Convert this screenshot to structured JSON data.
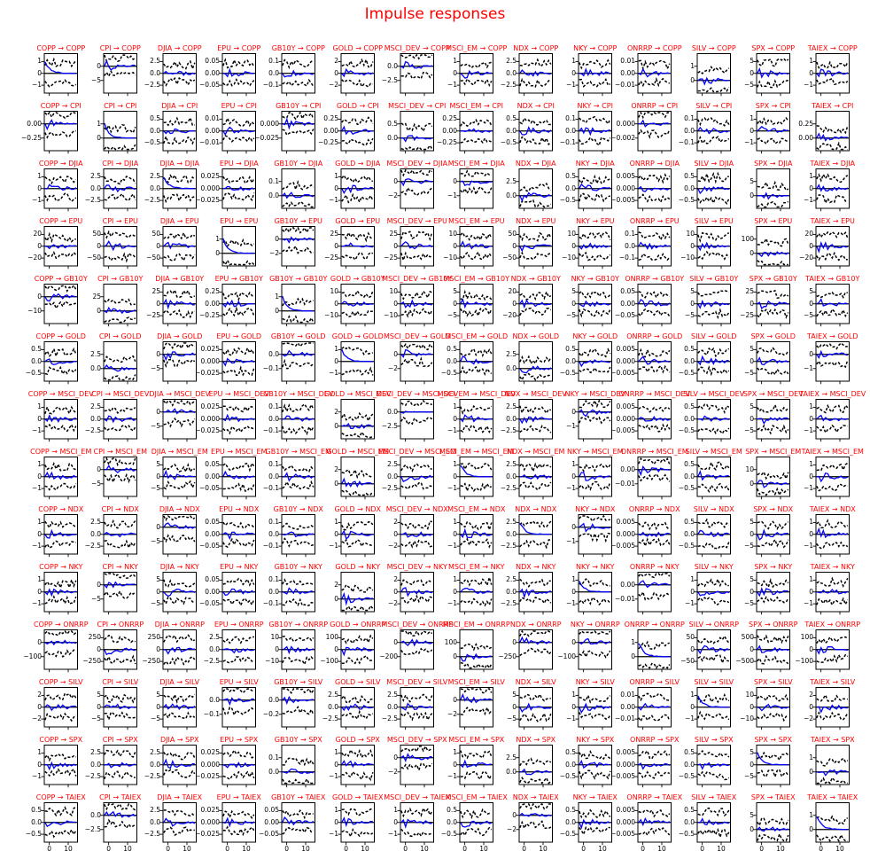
{
  "figure": {
    "title": "Impulse responses",
    "title_color": "#ff0000",
    "subplot_title_color": "#ff0000",
    "background": "#ffffff"
  },
  "chart_data": {
    "type": "line",
    "title": "Impulse responses",
    "grid": "14x14 impulse-response matrix (column variable = impulse, row variable = response)",
    "subplot_title_format": "{impulse} → {response}",
    "impulse_variables": [
      "COPP",
      "CPI",
      "DJIA",
      "EPU",
      "GB10Y",
      "GOLD",
      "MSCI_DEV",
      "MSCI_EM",
      "NDX",
      "NKY",
      "ONRRP",
      "SILV",
      "SPX",
      "TAIEX"
    ],
    "response_variables": [
      "COPP",
      "CPI",
      "DJIA",
      "EPU",
      "GB10Y",
      "GOLD",
      "MSCI_DEV",
      "MSCI_EM",
      "NDX",
      "NKY",
      "ONRRP",
      "SILV",
      "SPX",
      "TAIEX"
    ],
    "x_ticks": [
      "0",
      "10"
    ],
    "x_range": [
      0,
      14
    ],
    "legend": "none",
    "series_style": {
      "irf_line": {
        "color": "#0000ff",
        "style": "solid",
        "description": "impulse response, oscillates around zero and decays"
      },
      "confidence_bands": {
        "color": "#000000",
        "style": "dashed",
        "description": "upper and lower confidence bands"
      },
      "zero_line": {
        "color": "#000000",
        "style": "solid"
      }
    },
    "y_ticks_grid": [
      [
        [
          "1",
          "0",
          "−1"
        ],
        [
          "0",
          "−5"
        ],
        [
          "2.5",
          "0.0",
          "−2.5"
        ],
        [
          "0.05",
          "0.00",
          "−0.05"
        ],
        [
          "0.1",
          "0.0",
          "−0.1"
        ],
        [
          "2",
          "0",
          "−2"
        ],
        [
          "0.0",
          "−2.5"
        ],
        [
          "1",
          "0",
          "−1"
        ],
        [
          "2.5",
          "0.0",
          "−2.5"
        ],
        [
          "1",
          "0",
          "−1"
        ],
        [
          "0.01",
          "0.00",
          "−0.01"
        ],
        [
          "1",
          "0"
        ],
        [
          "5",
          "0",
          "−5"
        ],
        [
          "1",
          "0",
          "−1"
        ]
      ],
      [
        [
          "0.00",
          "−0.25"
        ],
        [
          "1",
          "0"
        ],
        [
          "0.5",
          "0.0",
          "−0.5"
        ],
        [
          "0.01",
          "0.00",
          "−0.01"
        ],
        [
          "0.000",
          "−0.025"
        ],
        [
          "0.25",
          "0.00",
          "−0.25"
        ],
        [
          "0.5",
          "0.0"
        ],
        [
          "0.25",
          "0.00",
          "−0.25"
        ],
        [
          "0.5",
          "0.0",
          "−0.5"
        ],
        [
          "0.1",
          "0.0",
          "−0.1"
        ],
        [
          "0.000",
          "−0.002"
        ],
        [
          "0.1",
          "0.0",
          "−0.1"
        ],
        [
          "1",
          "0",
          "−1"
        ],
        [
          "0.25",
          "0.00"
        ]
      ],
      [
        [
          "1",
          "0",
          "−1"
        ],
        [
          "2.5",
          "0.0",
          "−2.5"
        ],
        [
          "2.5",
          "0.0",
          "−2.5"
        ],
        [
          "0.025",
          "0.000",
          "−0.025"
        ],
        [
          "0.1",
          "0.0"
        ],
        [
          "1",
          "0",
          "−1"
        ],
        [
          "0",
          "−2"
        ],
        [
          "0",
          "−1"
        ],
        [
          "2.5",
          "0.0"
        ],
        [
          "0.5",
          "0.0",
          "−0.5"
        ],
        [
          "0.005",
          "0.000",
          "−0.005"
        ],
        [
          "0.5",
          "0.0",
          "−0.5"
        ],
        [
          "5",
          "0"
        ],
        [
          "1",
          "0",
          "−1"
        ]
      ],
      [
        [
          "20",
          "0",
          "−20"
        ],
        [
          "50",
          "0",
          "−50"
        ],
        [
          "50",
          "0",
          "−50"
        ],
        [
          "1",
          "0"
        ],
        [
          "0",
          "−2"
        ],
        [
          "25",
          "0",
          "−25"
        ],
        [
          "25",
          "0",
          "−25"
        ],
        [
          "10",
          "0",
          "−10"
        ],
        [
          "50",
          "0",
          "−50"
        ],
        [
          "10",
          "0",
          "−10"
        ],
        [
          "0.1",
          "0.0",
          "−0.1"
        ],
        [
          "10",
          "0",
          "−10"
        ],
        [
          "100",
          "0"
        ],
        [
          "20",
          "0",
          "−20"
        ]
      ],
      [
        [
          "0",
          "−10"
        ],
        [
          "25",
          "0"
        ],
        [
          "25",
          "0",
          "−25"
        ],
        [
          "0.25",
          "0.00",
          "−0.25"
        ],
        [
          "1",
          "0"
        ],
        [
          "10",
          "0",
          "−10"
        ],
        [
          "10",
          "0",
          "−10"
        ],
        [
          "5",
          "0",
          "−5"
        ],
        [
          "20",
          "0",
          "−20"
        ],
        [
          "5",
          "0",
          "−5"
        ],
        [
          "0.05",
          "0.00",
          "−0.05"
        ],
        [
          "5",
          "0",
          "−5"
        ],
        [
          "25",
          "0",
          "−25"
        ],
        [
          "5",
          "0",
          "−5"
        ]
      ],
      [
        [
          "0.5",
          "0.0",
          "−0.5"
        ],
        [
          "2.5",
          "0.0"
        ],
        [
          "0",
          "−5"
        ],
        [
          "0.025",
          "0.000",
          "−0.025"
        ],
        [
          "0.0",
          "−0.1"
        ],
        [
          "1",
          "0",
          "−1"
        ],
        [
          "0",
          "−2"
        ],
        [
          "0.5",
          "0.0",
          "−0.5"
        ],
        [
          "2.5",
          "0.0"
        ],
        [
          "0.5",
          "0.0",
          "−0.5"
        ],
        [
          "0.005",
          "0.000",
          "−0.005"
        ],
        [
          "0.5",
          "0.0",
          "−0.5"
        ],
        [
          "5",
          "0",
          "−5"
        ],
        [
          "0",
          "−1"
        ]
      ],
      [
        [
          "1",
          "0",
          "−1"
        ],
        [
          "2.5",
          "0.0",
          "−2.5"
        ],
        [
          "0",
          "−5"
        ],
        [
          "0.025",
          "0.000",
          "−0.025"
        ],
        [
          "0.1",
          "0.0",
          "−0.1"
        ],
        [
          "2",
          "0"
        ],
        [
          "0.0",
          "−2.5"
        ],
        [
          "1",
          "0",
          "−1"
        ],
        [
          "2.5",
          "0.0",
          "−2.5"
        ],
        [
          "0",
          "−1"
        ],
        [
          "0.005",
          "0.000",
          "−0.005"
        ],
        [
          "0.5",
          "0.0",
          "−0.5"
        ],
        [
          "5",
          "0",
          "−5"
        ],
        [
          "1",
          "0",
          "−1"
        ]
      ],
      [
        [
          "1",
          "0",
          "−1"
        ],
        [
          "0",
          "−5"
        ],
        [
          "5",
          "0",
          "−5"
        ],
        [
          "0.05",
          "0.00",
          "−0.05"
        ],
        [
          "0.1",
          "0.0",
          "−0.1"
        ],
        [
          "2",
          "0"
        ],
        [
          "2.5",
          "0.0",
          "−2.5"
        ],
        [
          "1",
          "0",
          "−1"
        ],
        [
          "2.5",
          "0.0",
          "−2.5"
        ],
        [
          "1",
          "0",
          "−1"
        ],
        [
          "0.00",
          "−0.01"
        ],
        [
          "0.5",
          "0.0",
          "−0.5"
        ],
        [
          "10",
          "0"
        ],
        [
          "1",
          "0",
          "−1"
        ]
      ],
      [
        [
          "1",
          "0",
          "−1"
        ],
        [
          "2.5",
          "0.0",
          "−2.5"
        ],
        [
          "0",
          "−5"
        ],
        [
          "0.05",
          "0.00",
          "−0.05"
        ],
        [
          "0.1",
          "0.0",
          "−0.1"
        ],
        [
          "1",
          "0",
          "−1"
        ],
        [
          "2",
          "0",
          "−2"
        ],
        [
          "1",
          "0",
          "−1"
        ],
        [
          "2.5",
          "0.0",
          "−2.5"
        ],
        [
          "0",
          "−1"
        ],
        [
          "0.005",
          "0.000",
          "−0.005"
        ],
        [
          "0.5",
          "0.0",
          "−0.5"
        ],
        [
          "5",
          "0",
          "−5"
        ],
        [
          "1",
          "0",
          "−1"
        ]
      ],
      [
        [
          "1",
          "0",
          "−1"
        ],
        [
          "0",
          "−5"
        ],
        [
          "5",
          "0",
          "−5"
        ],
        [
          "0.05",
          "0.00",
          "−0.05"
        ],
        [
          "0.1",
          "0.0",
          "−0.1"
        ],
        [
          "2",
          "0"
        ],
        [
          "2",
          "0",
          "−2"
        ],
        [
          "1",
          "0",
          "−1"
        ],
        [
          "2.5",
          "0.0",
          "−2.5"
        ],
        [
          "1",
          "0",
          "−1"
        ],
        [
          "0.00",
          "−0.01"
        ],
        [
          "1",
          "0",
          "−1"
        ],
        [
          "5",
          "0",
          "−5"
        ],
        [
          "1",
          "0",
          "−1"
        ]
      ],
      [
        [
          "0",
          "−100"
        ],
        [
          "250",
          "0",
          "−250"
        ],
        [
          "250",
          "0",
          "−250"
        ],
        [
          "2.5",
          "0.0",
          "−2.5"
        ],
        [
          "10",
          "0",
          "−10"
        ],
        [
          "100",
          "0",
          "−100"
        ],
        [
          "0",
          "−200"
        ],
        [
          "100",
          "0"
        ],
        [
          "0",
          "−250"
        ],
        [
          "0",
          "−100"
        ],
        [
          "1",
          "0"
        ],
        [
          "50",
          "0",
          "−50"
        ],
        [
          "500",
          "0",
          "−500"
        ],
        [
          "100",
          "0",
          "−100"
        ]
      ],
      [
        [
          "2",
          "0",
          "−2"
        ],
        [
          "5",
          "0",
          "−5"
        ],
        [
          "5",
          "0",
          "−5"
        ],
        [
          "0.0",
          "−0.1"
        ],
        [
          "0.0",
          "−0.2"
        ],
        [
          "2.5",
          "0.0",
          "−2.5"
        ],
        [
          "2.5",
          "0.0",
          "−2.5"
        ],
        [
          "0",
          "−2"
        ],
        [
          "5",
          "0",
          "−5"
        ],
        [
          "1",
          "0",
          "−1"
        ],
        [
          "0.01",
          "0.00",
          "−0.01"
        ],
        [
          "1",
          "0",
          "−1"
        ],
        [
          "10",
          "0",
          "−10"
        ],
        [
          "2",
          "0",
          "−2"
        ]
      ],
      [
        [
          "1",
          "0",
          "−1"
        ],
        [
          "2.5",
          "0.0",
          "−2.5"
        ],
        [
          "2.5",
          "0.0",
          "−2.5"
        ],
        [
          "0.025",
          "0.000",
          "−0.025"
        ],
        [
          "0.1",
          "0.0"
        ],
        [
          "1",
          "0",
          "−1"
        ],
        [
          "0",
          "−2"
        ],
        [
          "1",
          "0",
          "−1"
        ],
        [
          "2.5",
          "0.0"
        ],
        [
          "0.5",
          "0.0",
          "−0.5"
        ],
        [
          "0.005",
          "0.000",
          "−0.005"
        ],
        [
          "0.5",
          "0.0",
          "−0.5"
        ],
        [
          "5",
          "0",
          "−5"
        ],
        [
          "1",
          "0"
        ]
      ],
      [
        [
          "0.5",
          "0.0",
          "−0.5"
        ],
        [
          "0.0",
          "−2.5"
        ],
        [
          "2.5",
          "0.0",
          "−2.5"
        ],
        [
          "0.025",
          "0.000",
          "−0.025"
        ],
        [
          "0.05",
          "0.00",
          "−0.05"
        ],
        [
          "1",
          "0",
          "−1"
        ],
        [
          "1",
          "0",
          "−1"
        ],
        [
          "0.5",
          "0.0",
          "−0.5"
        ],
        [
          "0",
          "−2"
        ],
        [
          "0.5",
          "0.0",
          "−0.5"
        ],
        [
          "0.005",
          "0.000",
          "−0.005"
        ],
        [
          "0.5",
          "0.0",
          "−0.5"
        ],
        [
          "5",
          "0"
        ],
        [
          "1",
          "0"
        ]
      ]
    ]
  }
}
